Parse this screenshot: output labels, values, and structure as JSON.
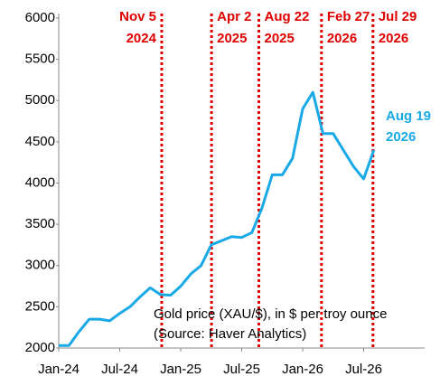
{
  "chart_data": {
    "type": "line",
    "annotation": [
      "Gold price (XAU/$), in $ per troy ounce",
      "(Source: Haver Analytics)"
    ],
    "series": [
      {
        "color": "#19a9e6",
        "end_label": [
          "Aug 19",
          "2026"
        ],
        "x": [
          "2024-01",
          "2024-02",
          "2024-03",
          "2024-04",
          "2024-05",
          "2024-06",
          "2024-07",
          "2024-08",
          "2024-09",
          "2024-10",
          "2024-11",
          "2024-12",
          "2025-01",
          "2025-02",
          "2025-03",
          "2025-04",
          "2025-05",
          "2025-06",
          "2025-07",
          "2025-08",
          "2025-09",
          "2025-10",
          "2025-11",
          "2025-12",
          "2026-01",
          "2026-02",
          "2026-03",
          "2026-04",
          "2026-05",
          "2026-06",
          "2026-07",
          "2026-08"
        ],
        "values": [
          2030,
          2030,
          2200,
          2350,
          2350,
          2330,
          2420,
          2500,
          2620,
          2730,
          2650,
          2640,
          2750,
          2900,
          3000,
          3250,
          3300,
          3350,
          3340,
          3400,
          3700,
          4100,
          4100,
          4300,
          4900,
          5100,
          4600,
          4600,
          4400,
          4200,
          4050,
          4400
        ]
      }
    ],
    "events": [
      {
        "x": "2024-11-05",
        "label": [
          "Nov 5",
          "2024"
        ]
      },
      {
        "x": "2025-04-02",
        "label": [
          "Apr 2",
          "2025"
        ]
      },
      {
        "x": "2025-08-22",
        "label": [
          "Aug 22",
          "2025"
        ]
      },
      {
        "x": "2026-02-27",
        "label": [
          "Feb 27",
          "2026"
        ]
      },
      {
        "x": "2026-07-29",
        "label": [
          "Jul 29",
          "2026"
        ]
      }
    ],
    "xlim": [
      "2024-01",
      "2027-01"
    ],
    "xticks": [
      {
        "value": "2024-01",
        "label": "Jan-24"
      },
      {
        "value": "2024-07",
        "label": "Jul-24"
      },
      {
        "value": "2025-01",
        "label": "Jan-25"
      },
      {
        "value": "2025-07",
        "label": "Jul-25"
      },
      {
        "value": "2026-01",
        "label": "Jan-26"
      },
      {
        "value": "2026-07",
        "label": "Jul-26"
      }
    ],
    "ylim": [
      2000,
      6000
    ],
    "yticks": [
      2000,
      2500,
      3000,
      3500,
      4000,
      4500,
      5000,
      5500,
      6000
    ]
  }
}
